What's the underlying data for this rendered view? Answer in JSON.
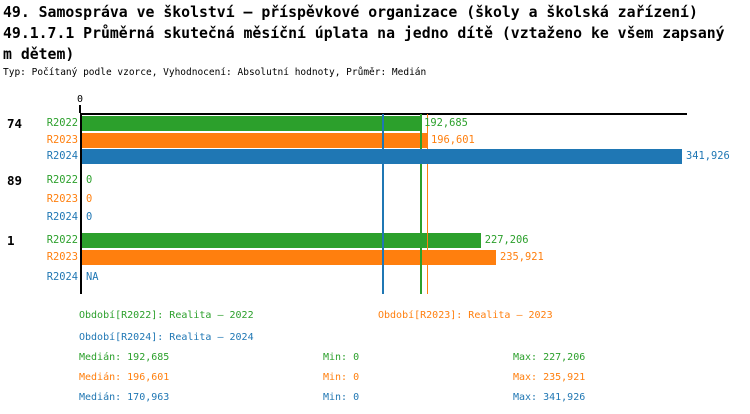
{
  "header": {
    "title_lines": [
      "49. Samospráva ve školství – příspěvkové organizace (školy a školská zařízení)",
      "49.1.7.1 Průměrná skutečná měsíční úplata na jedno dítě (vztaženo ke všem zapsaný",
      "m dětem)"
    ],
    "subtitle": "Typ: Počítaný podle vzorce, Vyhodnocení: Absolutní hodnoty, Průměr: Medián"
  },
  "chart_data": {
    "type": "bar",
    "orientation": "horizontal",
    "axis": {
      "zero_label": "0",
      "max_value": 341926,
      "xlim": [
        0,
        341926
      ],
      "grid": false
    },
    "colors": {
      "R2022": "#2CA02C",
      "R2023": "#FF7F0E",
      "R2024": "#1F77B4"
    },
    "categories": [
      "74",
      "89",
      "1"
    ],
    "groups": [
      {
        "label": "74",
        "bars": [
          {
            "series": "R2022",
            "value": 192685,
            "display": "192,685"
          },
          {
            "series": "R2023",
            "value": 196601,
            "display": "196,601"
          },
          {
            "series": "R2024",
            "value": 341926,
            "display": "341,926"
          }
        ]
      },
      {
        "label": "89",
        "bars": [
          {
            "series": "R2022",
            "value": 0,
            "display": "0"
          },
          {
            "series": "R2023",
            "value": 0,
            "display": "0"
          },
          {
            "series": "R2024",
            "value": 0,
            "display": "0"
          }
        ]
      },
      {
        "label": "1",
        "bars": [
          {
            "series": "R2022",
            "value": 227206,
            "display": "227,206"
          },
          {
            "series": "R2023",
            "value": 235921,
            "display": "235,921"
          },
          {
            "series": "R2024",
            "value": null,
            "display": "NA"
          }
        ]
      }
    ],
    "median_lines": [
      {
        "series": "R2022",
        "value": 192685
      },
      {
        "series": "R2023",
        "value": 196601
      },
      {
        "series": "R2024",
        "value": 170963
      }
    ]
  },
  "legend": {
    "items": [
      {
        "series": "R2022",
        "label": "Období[R2022]: Realita – 2022"
      },
      {
        "series": "R2023",
        "label": "Období[R2023]: Realita – 2023"
      },
      {
        "series": "R2024",
        "label": "Období[R2024]: Realita – 2024"
      }
    ]
  },
  "stats": {
    "rows": [
      {
        "series": "R2022",
        "median": 192685,
        "min": 0,
        "max": 227206,
        "median_label": "Medián: 192,685",
        "min_label": "Min: 0",
        "max_label": "Max: 227,206"
      },
      {
        "series": "R2023",
        "median": 196601,
        "min": 0,
        "max": 235921,
        "median_label": "Medián: 196,601",
        "min_label": "Min: 0",
        "max_label": "Max: 235,921"
      },
      {
        "series": "R2024",
        "median": 170963,
        "min": 0,
        "max": 341926,
        "median_label": "Medián: 170,963",
        "min_label": "Min: 0",
        "max_label": "Max: 341,926"
      }
    ]
  }
}
